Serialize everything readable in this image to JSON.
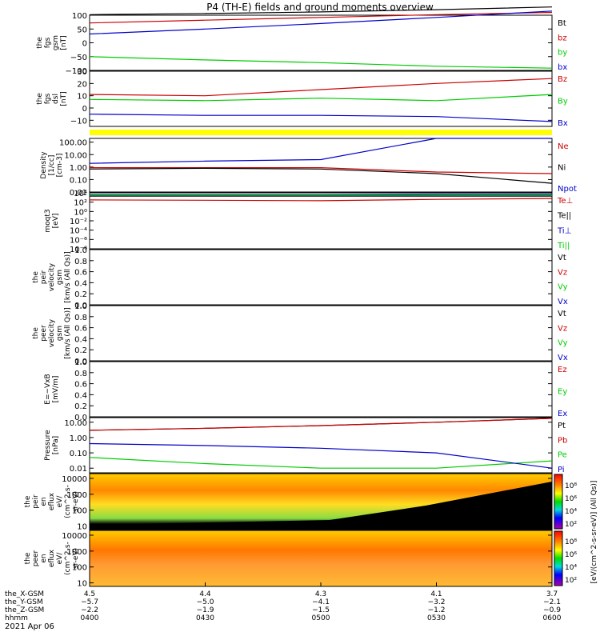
{
  "title": "P4 (TH-E) fields and ground moments overview",
  "date_label": "2021 Apr 06",
  "colors": {
    "black": "#000000",
    "red": "#cc0000",
    "green": "#00cc00",
    "blue": "#0000cc",
    "yellow": "#ffff00"
  },
  "chart_data": [
    {
      "type": "line",
      "panel": "fgs_gsm",
      "ylabel_lines": [
        "the",
        "fgs",
        "gsm",
        "[nT]"
      ],
      "ylim": [
        -100,
        100
      ],
      "y_ticks": [
        "100",
        "50",
        "0",
        "−50",
        "−100"
      ],
      "y_tick_values": [
        100,
        50,
        0,
        -50,
        -100
      ],
      "x": [
        "0400",
        "0430",
        "0500",
        "0530",
        "0600"
      ],
      "series": [
        {
          "name": "Bt",
          "color": "#000000",
          "values": [
            102,
            106,
            112,
            120,
            130
          ]
        },
        {
          "name": "bz",
          "color": "#cc0000",
          "values": [
            72,
            82,
            92,
            102,
            110
          ]
        },
        {
          "name": "by",
          "color": "#00cc00",
          "values": [
            -50,
            -62,
            -72,
            -85,
            -92
          ]
        },
        {
          "name": "bx",
          "color": "#0000cc",
          "values": [
            32,
            50,
            70,
            92,
            115
          ]
        }
      ]
    },
    {
      "type": "line",
      "panel": "fgs_dsl",
      "ylabel_lines": [
        "the",
        "fgs",
        "dsl",
        "[nT]"
      ],
      "ylim": [
        -15,
        30
      ],
      "y_ticks": [
        "30",
        "20",
        "10",
        "0",
        "−10"
      ],
      "y_tick_values": [
        30,
        20,
        10,
        0,
        -10
      ],
      "x": [
        "0400",
        "0430",
        "0500",
        "0530",
        "0600"
      ],
      "series": [
        {
          "name": "Bz",
          "color": "#cc0000",
          "values": [
            11,
            10,
            15,
            20,
            24
          ]
        },
        {
          "name": "By",
          "color": "#00cc00",
          "values": [
            7,
            6,
            8,
            6,
            11
          ]
        },
        {
          "name": "Bx",
          "color": "#0000cc",
          "values": [
            -5,
            -6,
            -6,
            -7,
            -11
          ]
        }
      ]
    },
    {
      "type": "line",
      "panel": "density",
      "ylabel_lines": [
        "Density",
        "[1/cc]",
        "[cm-3]"
      ],
      "log": true,
      "ylim": [
        0.01,
        200
      ],
      "y_ticks": [
        "100.00",
        "10.00",
        "1.00",
        "0.10",
        "0.01"
      ],
      "y_tick_values": [
        100,
        10,
        1,
        0.1,
        0.01
      ],
      "x": [
        "0400",
        "0430",
        "0500",
        "0530",
        "0600"
      ],
      "series": [
        {
          "name": "Ne",
          "color": "#cc0000",
          "values": [
            0.9,
            0.9,
            0.9,
            0.4,
            0.3
          ]
        },
        {
          "name": "Ni",
          "color": "#000000",
          "values": [
            0.7,
            0.8,
            0.7,
            0.3,
            0.05
          ]
        },
        {
          "name": "Npot",
          "color": "#0000cc",
          "values": [
            2,
            3,
            4,
            200,
            200
          ]
        }
      ]
    },
    {
      "type": "line",
      "panel": "moqt3",
      "ylabel_lines": [
        "moqt3",
        "[eV]"
      ],
      "log": true,
      "ylim": [
        1e-08,
        10000
      ],
      "y_ticks": [
        "10⁴",
        "10²",
        "10⁰",
        "10⁻²",
        "10⁻⁴",
        "10⁻⁶",
        "10⁻⁸"
      ],
      "y_tick_values": [
        10000,
        100,
        1,
        0.01,
        0.0001,
        1e-06,
        1e-08
      ],
      "x": [
        "0400",
        "0430",
        "0500",
        "0530",
        "0600"
      ],
      "series": [
        {
          "name": "Te⊥",
          "color": "#cc0000",
          "values": [
            300,
            250,
            200,
            400,
            600
          ]
        },
        {
          "name": "Te||",
          "color": "#000000",
          "values": [
            2000,
            2000,
            2000,
            2000,
            2000
          ]
        },
        {
          "name": "Ti⊥",
          "color": "#0000cc",
          "values": [
            4000,
            4000,
            4000,
            5000,
            5000
          ]
        },
        {
          "name": "Ti||",
          "color": "#00cc00",
          "values": [
            3000,
            3000,
            3000,
            3000,
            3000
          ]
        }
      ]
    },
    {
      "type": "line",
      "panel": "peir_velocity",
      "ylabel_lines": [
        "the",
        "peir",
        "velocity",
        "gsm",
        "[km/s (All Qs)]"
      ],
      "ylim": [
        0,
        1
      ],
      "y_ticks": [
        "1.0",
        "0.8",
        "0.6",
        "0.4",
        "0.2",
        "0.0"
      ],
      "y_tick_values": [
        1,
        0.8,
        0.6,
        0.4,
        0.2,
        0
      ],
      "series": [
        {
          "name": "Vt",
          "color": "#000000"
        },
        {
          "name": "Vz",
          "color": "#cc0000"
        },
        {
          "name": "Vy",
          "color": "#00cc00"
        },
        {
          "name": "Vx",
          "color": "#0000cc"
        }
      ]
    },
    {
      "type": "line",
      "panel": "peer_velocity",
      "ylabel_lines": [
        "the",
        "peer",
        "velocity",
        "gsm",
        "[km/s (All Qs)]"
      ],
      "ylim": [
        0,
        1
      ],
      "y_ticks": [
        "1.0",
        "0.8",
        "0.6",
        "0.4",
        "0.2",
        "0.0"
      ],
      "y_tick_values": [
        1,
        0.8,
        0.6,
        0.4,
        0.2,
        0
      ],
      "series": [
        {
          "name": "Vt",
          "color": "#000000"
        },
        {
          "name": "Vz",
          "color": "#cc0000"
        },
        {
          "name": "Vy",
          "color": "#00cc00"
        },
        {
          "name": "Vx",
          "color": "#0000cc"
        }
      ]
    },
    {
      "type": "line",
      "panel": "efield",
      "ylabel_lines": [
        "E=−VxB",
        "[mV/m]"
      ],
      "ylim": [
        0,
        1
      ],
      "y_ticks": [
        "1.0",
        "0.8",
        "0.6",
        "0.4",
        "0.2",
        "0.0"
      ],
      "y_tick_values": [
        1,
        0.8,
        0.6,
        0.4,
        0.2,
        0
      ],
      "series": [
        {
          "name": "Ez",
          "color": "#cc0000"
        },
        {
          "name": "Ey",
          "color": "#00cc00"
        },
        {
          "name": "Ex",
          "color": "#0000cc"
        }
      ]
    },
    {
      "type": "line",
      "panel": "pressure",
      "ylabel_lines": [
        "Pressure",
        "[nPa]"
      ],
      "log": true,
      "ylim": [
        0.005,
        20
      ],
      "y_ticks": [
        "10.00",
        "1.00",
        "0.10",
        "0.01"
      ],
      "y_tick_values": [
        10,
        1,
        0.1,
        0.01
      ],
      "x": [
        "0400",
        "0430",
        "0500",
        "0530",
        "0600"
      ],
      "series": [
        {
          "name": "Pt",
          "color": "#000000",
          "values": [
            3,
            4,
            6,
            10,
            18
          ]
        },
        {
          "name": "Pb",
          "color": "#cc0000",
          "values": [
            3,
            4,
            6,
            10,
            18
          ]
        },
        {
          "name": "Pe",
          "color": "#00cc00",
          "values": [
            0.05,
            0.02,
            0.01,
            0.01,
            0.03
          ]
        },
        {
          "name": "Pi",
          "color": "#0000cc",
          "values": [
            0.4,
            0.3,
            0.2,
            0.1,
            0.01
          ]
        }
      ]
    },
    {
      "type": "heatmap",
      "panel": "peir_en_eflux",
      "ylabel_lines": [
        "the",
        "peir",
        "en",
        "eflux",
        "eV/",
        "(cm^2-s-",
        "sr-eV)"
      ],
      "log": true,
      "y_ticks": [
        "10000",
        "1000",
        "100",
        "10"
      ],
      "y_tick_values": [
        10000,
        1000,
        100,
        10
      ]
    },
    {
      "type": "heatmap",
      "panel": "peer_en_eflux",
      "ylabel_lines": [
        "the",
        "peer",
        "en",
        "eflux",
        "eV/",
        "(cm^2-s-",
        "sr-eV)"
      ],
      "log": true,
      "y_ticks": [
        "10000",
        "1000",
        "100",
        "10"
      ],
      "y_tick_values": [
        10000,
        1000,
        100,
        10
      ]
    }
  ],
  "colorbar": {
    "label": "[eV/(cm^2-s-sr-eV)] (All Qs)]",
    "ticks_top": [
      "10⁸",
      "10⁶",
      "10⁴",
      "10²"
    ],
    "ticks_bottom": [
      "10⁸",
      "10⁶",
      "10⁴",
      "10²"
    ]
  },
  "x_axis": {
    "rows": [
      {
        "label": "the_X-GSM",
        "values": [
          "4.5",
          "4.4",
          "4.3",
          "4.1",
          "3.7"
        ]
      },
      {
        "label": "the_Y-GSM",
        "values": [
          "−5.7",
          "−5.0",
          "−4.1",
          "−3.2",
          "−2.1"
        ]
      },
      {
        "label": "the_Z-GSM",
        "values": [
          "−2.2",
          "−1.9",
          "−1.5",
          "−1.2",
          "−0.9"
        ]
      },
      {
        "label": "hhmm",
        "values": [
          "0400",
          "0430",
          "0500",
          "0530",
          "0600"
        ]
      }
    ]
  }
}
